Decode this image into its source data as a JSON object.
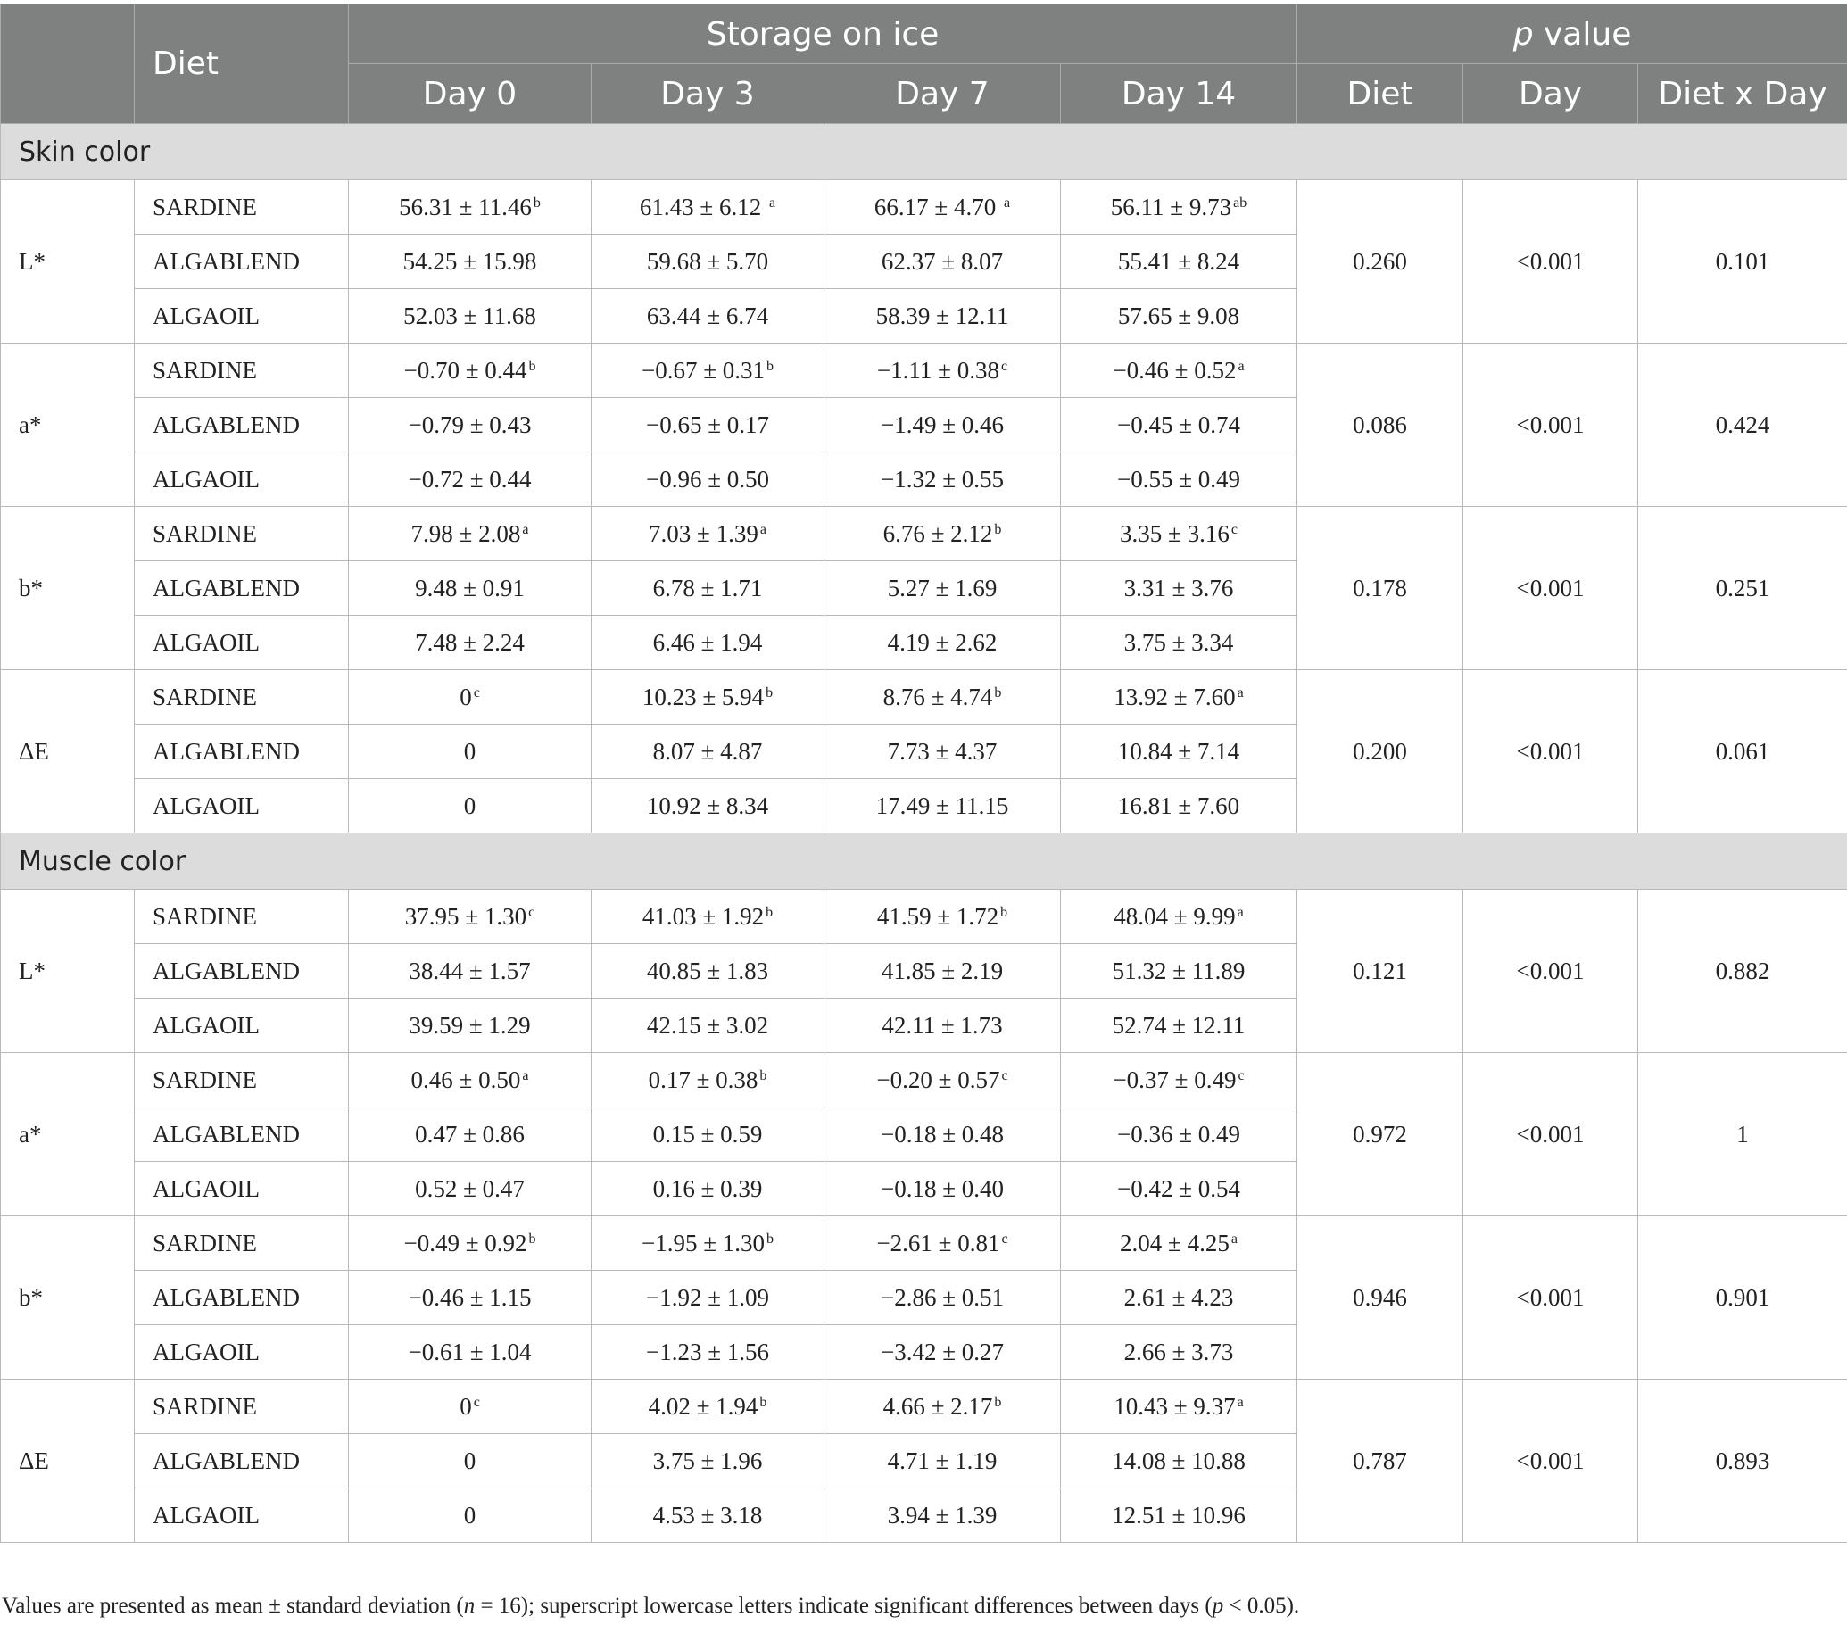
{
  "header": {
    "diet": "Diet",
    "storage": "Storage on ice",
    "p_italic": "p",
    "p_rest": " value",
    "days": [
      "Day 0",
      "Day 3",
      "Day 7",
      "Day 14"
    ],
    "p_cols": [
      "Diet",
      "Day",
      "Diet x Day"
    ]
  },
  "sections": [
    {
      "title": "Skin color",
      "params": [
        {
          "name": "L*",
          "p": [
            "0.260",
            "<0.001",
            "0.101"
          ],
          "rows": [
            {
              "diet": "SARDINE",
              "cells": [
                [
                  "56.31 ± 11.46",
                  "b"
                ],
                [
                  "61.43 ± 6.12 ",
                  "a"
                ],
                [
                  "66.17 ± 4.70 ",
                  "a"
                ],
                [
                  "56.11 ± 9.73",
                  "ab"
                ]
              ]
            },
            {
              "diet": "ALGABLEND",
              "cells": [
                [
                  "54.25 ± 15.98",
                  ""
                ],
                [
                  "59.68 ± 5.70",
                  ""
                ],
                [
                  "62.37 ± 8.07",
                  ""
                ],
                [
                  "55.41 ± 8.24",
                  ""
                ]
              ]
            },
            {
              "diet": "ALGAOIL",
              "cells": [
                [
                  "52.03 ± 11.68",
                  ""
                ],
                [
                  "63.44 ± 6.74",
                  ""
                ],
                [
                  "58.39 ± 12.11",
                  ""
                ],
                [
                  "57.65 ± 9.08",
                  ""
                ]
              ]
            }
          ]
        },
        {
          "name": "a*",
          "p": [
            "0.086",
            "<0.001",
            "0.424"
          ],
          "rows": [
            {
              "diet": "SARDINE",
              "cells": [
                [
                  "−0.70 ± 0.44",
                  "b"
                ],
                [
                  "−0.67 ± 0.31",
                  "b"
                ],
                [
                  "−1.11 ± 0.38",
                  "c"
                ],
                [
                  "−0.46 ± 0.52",
                  "a"
                ]
              ]
            },
            {
              "diet": "ALGABLEND",
              "cells": [
                [
                  "−0.79 ± 0.43",
                  ""
                ],
                [
                  "−0.65 ± 0.17",
                  ""
                ],
                [
                  "−1.49 ± 0.46",
                  ""
                ],
                [
                  "−0.45 ± 0.74",
                  ""
                ]
              ]
            },
            {
              "diet": "ALGAOIL",
              "cells": [
                [
                  "−0.72 ± 0.44",
                  ""
                ],
                [
                  "−0.96 ± 0.50",
                  ""
                ],
                [
                  "−1.32 ± 0.55",
                  ""
                ],
                [
                  "−0.55 ± 0.49",
                  ""
                ]
              ]
            }
          ]
        },
        {
          "name": "b*",
          "p": [
            "0.178",
            "<0.001",
            "0.251"
          ],
          "rows": [
            {
              "diet": "SARDINE",
              "cells": [
                [
                  "7.98 ± 2.08",
                  "a"
                ],
                [
                  "7.03 ± 1.39",
                  "a"
                ],
                [
                  "6.76 ± 2.12",
                  "b"
                ],
                [
                  "3.35 ± 3.16",
                  "c"
                ]
              ]
            },
            {
              "diet": "ALGABLEND",
              "cells": [
                [
                  "9.48 ± 0.91",
                  ""
                ],
                [
                  "6.78 ± 1.71",
                  ""
                ],
                [
                  "5.27 ± 1.69",
                  ""
                ],
                [
                  "3.31 ± 3.76",
                  ""
                ]
              ]
            },
            {
              "diet": "ALGAOIL",
              "cells": [
                [
                  "7.48 ± 2.24",
                  ""
                ],
                [
                  "6.46 ± 1.94",
                  ""
                ],
                [
                  "4.19 ± 2.62",
                  ""
                ],
                [
                  "3.75 ± 3.34",
                  ""
                ]
              ]
            }
          ]
        },
        {
          "name": "ΔE",
          "p": [
            "0.200",
            "<0.001",
            "0.061"
          ],
          "rows": [
            {
              "diet": "SARDINE",
              "cells": [
                [
                  "0",
                  "c"
                ],
                [
                  "10.23 ± 5.94",
                  "b"
                ],
                [
                  "8.76 ± 4.74",
                  "b"
                ],
                [
                  "13.92 ± 7.60",
                  "a"
                ]
              ]
            },
            {
              "diet": "ALGABLEND",
              "cells": [
                [
                  "0",
                  ""
                ],
                [
                  "8.07 ± 4.87",
                  ""
                ],
                [
                  "7.73 ± 4.37",
                  ""
                ],
                [
                  "10.84 ± 7.14",
                  ""
                ]
              ]
            },
            {
              "diet": "ALGAOIL",
              "cells": [
                [
                  "0",
                  ""
                ],
                [
                  "10.92 ± 8.34",
                  ""
                ],
                [
                  "17.49 ± 11.15",
                  ""
                ],
                [
                  "16.81 ± 7.60",
                  ""
                ]
              ]
            }
          ]
        }
      ]
    },
    {
      "title": "Muscle color",
      "params": [
        {
          "name": "L*",
          "p": [
            "0.121",
            "<0.001",
            "0.882"
          ],
          "rows": [
            {
              "diet": "SARDINE",
              "cells": [
                [
                  "37.95 ± 1.30",
                  "c"
                ],
                [
                  "41.03 ± 1.92",
                  "b"
                ],
                [
                  "41.59 ± 1.72",
                  "b"
                ],
                [
                  "48.04 ± 9.99",
                  "a"
                ]
              ]
            },
            {
              "diet": "ALGABLEND",
              "cells": [
                [
                  "38.44 ± 1.57",
                  ""
                ],
                [
                  "40.85 ± 1.83",
                  ""
                ],
                [
                  "41.85 ± 2.19",
                  ""
                ],
                [
                  "51.32 ± 11.89",
                  ""
                ]
              ]
            },
            {
              "diet": "ALGAOIL",
              "cells": [
                [
                  "39.59 ± 1.29",
                  ""
                ],
                [
                  "42.15 ± 3.02",
                  ""
                ],
                [
                  "42.11 ± 1.73",
                  ""
                ],
                [
                  "52.74 ± 12.11",
                  ""
                ]
              ]
            }
          ]
        },
        {
          "name": "a*",
          "p": [
            "0.972",
            "<0.001",
            "1"
          ],
          "rows": [
            {
              "diet": "SARDINE",
              "cells": [
                [
                  "0.46 ± 0.50",
                  "a"
                ],
                [
                  "0.17 ± 0.38",
                  "b"
                ],
                [
                  "−0.20 ± 0.57",
                  "c"
                ],
                [
                  "−0.37 ± 0.49",
                  "c"
                ]
              ]
            },
            {
              "diet": "ALGABLEND",
              "cells": [
                [
                  "0.47 ± 0.86",
                  ""
                ],
                [
                  "0.15 ± 0.59",
                  ""
                ],
                [
                  "−0.18 ± 0.48",
                  ""
                ],
                [
                  "−0.36 ± 0.49",
                  ""
                ]
              ]
            },
            {
              "diet": "ALGAOIL",
              "cells": [
                [
                  "0.52 ± 0.47",
                  ""
                ],
                [
                  "0.16 ± 0.39",
                  ""
                ],
                [
                  "−0.18 ± 0.40",
                  ""
                ],
                [
                  "−0.42 ± 0.54",
                  ""
                ]
              ]
            }
          ]
        },
        {
          "name": "b*",
          "p": [
            "0.946",
            "<0.001",
            "0.901"
          ],
          "rows": [
            {
              "diet": "SARDINE",
              "cells": [
                [
                  "−0.49 ± 0.92",
                  "b"
                ],
                [
                  "−1.95 ± 1.30",
                  "b"
                ],
                [
                  "−2.61 ± 0.81",
                  "c"
                ],
                [
                  "2.04 ± 4.25",
                  "a"
                ]
              ]
            },
            {
              "diet": "ALGABLEND",
              "cells": [
                [
                  "−0.46 ± 1.15",
                  ""
                ],
                [
                  "−1.92 ± 1.09",
                  ""
                ],
                [
                  "−2.86 ± 0.51",
                  ""
                ],
                [
                  "2.61 ± 4.23",
                  ""
                ]
              ]
            },
            {
              "diet": "ALGAOIL",
              "cells": [
                [
                  "−0.61 ± 1.04",
                  ""
                ],
                [
                  "−1.23 ± 1.56",
                  ""
                ],
                [
                  "−3.42 ± 0.27",
                  ""
                ],
                [
                  "2.66 ± 3.73",
                  ""
                ]
              ]
            }
          ]
        },
        {
          "name": "ΔE",
          "p": [
            "0.787",
            "<0.001",
            "0.893"
          ],
          "rows": [
            {
              "diet": "SARDINE",
              "cells": [
                [
                  "0",
                  "c"
                ],
                [
                  "4.02 ± 1.94",
                  "b"
                ],
                [
                  "4.66 ± 2.17",
                  "b"
                ],
                [
                  "10.43 ± 9.37",
                  "a"
                ]
              ]
            },
            {
              "diet": "ALGABLEND",
              "cells": [
                [
                  "0",
                  ""
                ],
                [
                  "3.75 ± 1.96",
                  ""
                ],
                [
                  "4.71 ± 1.19",
                  ""
                ],
                [
                  "14.08 ± 10.88",
                  ""
                ]
              ]
            },
            {
              "diet": "ALGAOIL",
              "cells": [
                [
                  "0",
                  ""
                ],
                [
                  "4.53 ± 3.18",
                  ""
                ],
                [
                  "3.94 ± 1.39",
                  ""
                ],
                [
                  "12.51 ± 10.96",
                  ""
                ]
              ]
            }
          ]
        }
      ]
    }
  ],
  "footnote": {
    "part1": "Values are presented as mean ± standard deviation (",
    "n_italic": "n",
    "part2": " = 16); superscript lowercase letters indicate significant differences between days (",
    "p_italic": "p",
    "part3": " < 0.05)."
  }
}
